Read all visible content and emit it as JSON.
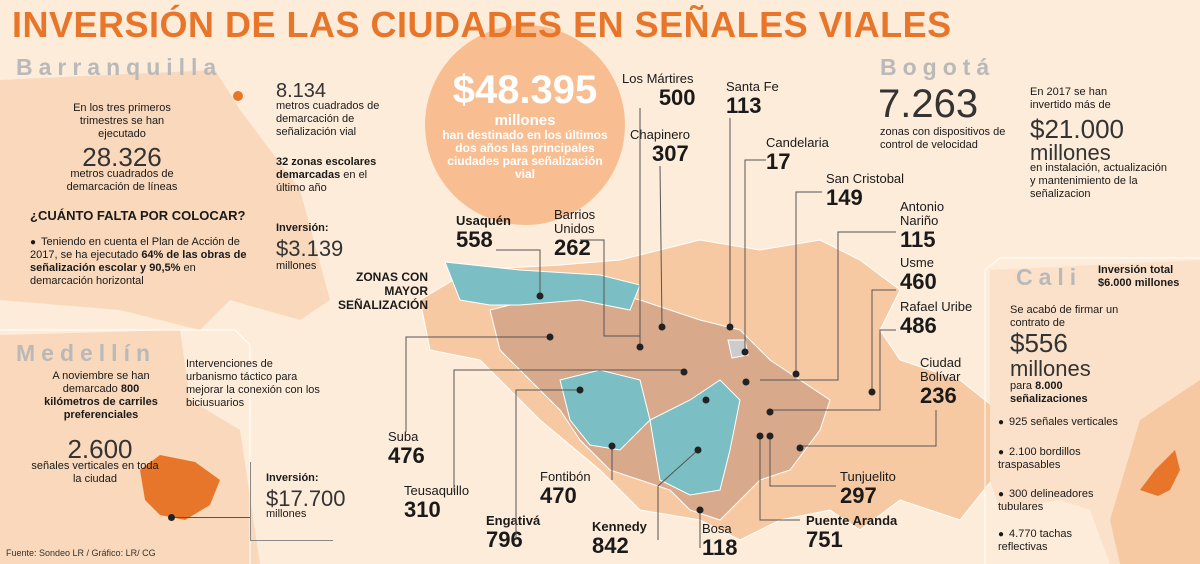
{
  "title": "INVERSIÓN DE LAS CIUDADES EN SEÑALES   VIALES",
  "headline": {
    "amount": "$48.395",
    "unit": "millones",
    "text": "han destinado en los últimos dos años las principales ciudades para señalización vial"
  },
  "barranquilla": {
    "name": "Barranquilla",
    "intro": "En los tres primeros trimestres se han ejecutado",
    "metros_value": "28.326",
    "metros_label": "metros cuadrados de demarcación de líneas",
    "sen_value": "8.134",
    "sen_label": "metros cuadrados de demarcación de señalización vial",
    "zonas_bold": "32 zonas escolares demarcadas",
    "zonas_rest": " en el último año",
    "question": "¿CUÁNTO FALTA POR COLOCAR?",
    "plan_a": "Teniendo en cuenta el Plan de Acción de 2017, se ha ejecutado ",
    "plan_bold1": "64% de las obras de señalización escolar y 90,5%",
    "plan_b": " en demarcación horizontal",
    "inv_label": "Inversión:",
    "inv_value": "$3.139",
    "inv_unit": "millones"
  },
  "medellin": {
    "name": "Medellín",
    "text_a": "A noviembre se han demarcado ",
    "text_bold": "800 kilómetros de carriles preferenciales",
    "urban": "Intervenciones de urbanismo táctico para mejorar la conexión con los biciusuarios",
    "sen_value": "2.600",
    "sen_label": "señales verticales en toda la ciudad",
    "inv_label": "Inversión:",
    "inv_value": "$17.700",
    "inv_unit": "millones"
  },
  "bogota": {
    "name": "Bogotá",
    "zonas_value": "7.263",
    "zonas_label": "zonas con dispositivos de control de velocidad",
    "inv_intro": "En 2017 se han invertido más de",
    "inv_value": "$21.000",
    "inv_unit": "millones",
    "inv_label": "en instalación, actualización y mantenimiento de la señalizacion",
    "zonas_mayor": "ZONAS CON MAYOR SEÑALIZACIÓN"
  },
  "localidades": [
    {
      "name": "Los Mártires",
      "value": "500"
    },
    {
      "name": "Santa Fe",
      "value": "113"
    },
    {
      "name": "Chapinero",
      "value": "307"
    },
    {
      "name": "Candelaria",
      "value": "17"
    },
    {
      "name": "San Cristobal",
      "value": "149"
    },
    {
      "name": "Antonio Nariño",
      "value": "115"
    },
    {
      "name": "Usme",
      "value": "460"
    },
    {
      "name": "Rafael Uribe",
      "value": "486"
    },
    {
      "name": "Ciudad Bolívar",
      "value": "236"
    },
    {
      "name": "Tunjuelito",
      "value": "297"
    },
    {
      "name": "Puente Aranda",
      "value": "751"
    },
    {
      "name": "Bosa",
      "value": "118"
    },
    {
      "name": "Kennedy",
      "value": "842"
    },
    {
      "name": "Fontibón",
      "value": "470"
    },
    {
      "name": "Engativá",
      "value": "796"
    },
    {
      "name": "Teusaquillo",
      "value": "310"
    },
    {
      "name": "Suba",
      "value": "476"
    },
    {
      "name": "Usaquén",
      "value": "558"
    },
    {
      "name": "Barrios Unidos",
      "value": "262"
    }
  ],
  "cali": {
    "name": "Cali",
    "inv_total": "Inversión total $6.000 millones",
    "intro": "Se acabó de firmar un contrato de",
    "contrato_value": "$556",
    "contrato_unit": "millones",
    "para_a": "para ",
    "para_bold": "8.000 señalizaciones",
    "items": [
      "925 señales verticales",
      "2.100 bordillos traspasables",
      "300 delineadores tubulares",
      "4.770 tachas reflectivas"
    ]
  },
  "source": "Fuente: Sondeo LR / Gráfico: LR/ CG",
  "colors": {
    "accent": "#e8762a",
    "teal": "#7bbfc4",
    "tan": "#d8a98a",
    "peach": "#f6c9a3"
  }
}
